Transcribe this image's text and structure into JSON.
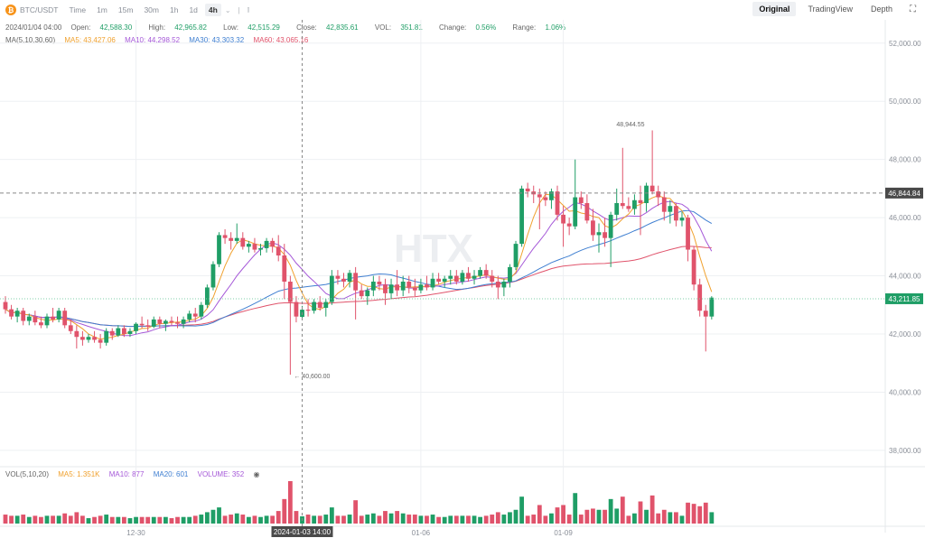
{
  "toolbar": {
    "symbol_icon": "bitcoin-icon",
    "symbol": "BTC/USDT",
    "timeframes": [
      "Time",
      "1m",
      "15m",
      "30m",
      "1h",
      "1d",
      "4h"
    ],
    "active_timeframe": "4h",
    "views": [
      "Original",
      "TradingView",
      "Depth"
    ],
    "active_view": "Original"
  },
  "ohlc": {
    "date": "2024/01/04 04:00",
    "open_label": "Open:",
    "open": "42,588.30",
    "high_label": "High:",
    "high": "42,965.82",
    "low_label": "Low:",
    "low": "42,515.29",
    "close_label": "Close:",
    "close": "42,835.61",
    "vol_label": "VOL:",
    "vol": "351.81",
    "change_label": "Change:",
    "change": "0.56%",
    "range_label": "Range:",
    "range": "1.06%"
  },
  "ma": {
    "label": "MA(5,10,30,60)",
    "ma5": "MA5: 43,427.06",
    "ma10": "MA10: 44,298.52",
    "ma30": "MA30: 43,303.32",
    "ma60": "MA60: 43,065.16"
  },
  "vol_info": {
    "label": "VOL(5,10,20)",
    "ma5": "MA5: 1.351K",
    "ma10": "MA10: 877",
    "ma20": "MA20: 601",
    "volume": "VOLUME: 352"
  },
  "colors": {
    "up": "#1f9e66",
    "down": "#e0536b",
    "ma5": "#f0a12e",
    "ma10": "#a558d8",
    "ma30": "#3f7fd1",
    "ma60": "#e0536b"
  },
  "chart_data": {
    "type": "candlestick",
    "ylim": [
      37500,
      52800
    ],
    "y_ticks": [
      38000,
      40000,
      42000,
      44000,
      46000,
      48000,
      50000,
      52000
    ],
    "y_tick_labels": [
      "38,000.00",
      "40,000.00",
      "42,000.00",
      "44,000.00",
      "46,000.00",
      "48,000.00",
      "50,000.00",
      "52,000.00"
    ],
    "x_tick_labels": [
      {
        "index": 22,
        "label": "12-30"
      },
      {
        "index": 70,
        "label": "01-06"
      },
      {
        "index": 94,
        "label": "01-09"
      }
    ],
    "crosshair": {
      "index": 50,
      "label": "2024-01-03 14:00"
    },
    "price_lines": [
      {
        "value": 46844.84,
        "label": "46,844.84",
        "style": "dashed-gray"
      },
      {
        "value": 43211.85,
        "label": "43,211.85",
        "style": "dotted-green"
      }
    ],
    "annotations": [
      {
        "index": 48,
        "value": 40600,
        "label": "40,600.00"
      },
      {
        "index": 108,
        "value": 48944.55,
        "label": "48,944.55"
      }
    ],
    "candles": [
      [
        43100,
        43300,
        42700,
        42850
      ],
      [
        42850,
        43000,
        42500,
        42600
      ],
      [
        42600,
        42900,
        42400,
        42800
      ],
      [
        42800,
        42900,
        42300,
        42450
      ],
      [
        42450,
        42700,
        42300,
        42600
      ],
      [
        42600,
        42800,
        42300,
        42400
      ],
      [
        42400,
        42600,
        42200,
        42300
      ],
      [
        42300,
        42700,
        42200,
        42600
      ],
      [
        42600,
        42900,
        42400,
        42500
      ],
      [
        42500,
        42900,
        42400,
        42800
      ],
      [
        42800,
        42900,
        42200,
        42300
      ],
      [
        42300,
        42500,
        42000,
        42100
      ],
      [
        42100,
        42300,
        41500,
        41900
      ],
      [
        41900,
        42100,
        41600,
        41800
      ],
      [
        41800,
        42000,
        41700,
        41900
      ],
      [
        41900,
        42100,
        41700,
        41800
      ],
      [
        41800,
        42000,
        41500,
        41700
      ],
      [
        41700,
        42200,
        41600,
        42100
      ],
      [
        42100,
        42200,
        41800,
        41950
      ],
      [
        41950,
        42300,
        41900,
        42200
      ],
      [
        42200,
        42300,
        41900,
        42000
      ],
      [
        42000,
        42200,
        41900,
        42100
      ],
      [
        42100,
        42400,
        42000,
        42350
      ],
      [
        42350,
        42600,
        42200,
        42300
      ],
      [
        42300,
        42500,
        42100,
        42250
      ],
      [
        42250,
        42600,
        42200,
        42500
      ],
      [
        42500,
        42600,
        42200,
        42350
      ],
      [
        42350,
        42500,
        42100,
        42450
      ],
      [
        42450,
        42600,
        42300,
        42400
      ],
      [
        42400,
        42600,
        42200,
        42350
      ],
      [
        42350,
        42600,
        42200,
        42500
      ],
      [
        42500,
        42800,
        42400,
        42700
      ],
      [
        42700,
        42900,
        42400,
        42600
      ],
      [
        42600,
        43100,
        42500,
        43000
      ],
      [
        43000,
        43700,
        42900,
        43600
      ],
      [
        43600,
        44500,
        43500,
        44400
      ],
      [
        44400,
        45500,
        44300,
        45400
      ],
      [
        45400,
        45600,
        45100,
        45300
      ],
      [
        45300,
        45500,
        44900,
        45200
      ],
      [
        45200,
        45800,
        45100,
        45300
      ],
      [
        45300,
        45500,
        44900,
        45000
      ],
      [
        45000,
        45200,
        44800,
        45100
      ],
      [
        45100,
        45300,
        44800,
        44900
      ],
      [
        44900,
        45100,
        44700,
        44950
      ],
      [
        44950,
        45300,
        44800,
        45200
      ],
      [
        45200,
        45300,
        44800,
        45000
      ],
      [
        45000,
        45400,
        44500,
        44700
      ],
      [
        44700,
        45100,
        43200,
        43800
      ],
      [
        43800,
        44000,
        40600,
        43100
      ],
      [
        43100,
        43300,
        42400,
        42600
      ],
      [
        42588,
        42966,
        42515,
        42836
      ],
      [
        42836,
        43200,
        42600,
        42800
      ],
      [
        42800,
        43200,
        42700,
        43100
      ],
      [
        43100,
        43300,
        42800,
        42900
      ],
      [
        42900,
        43200,
        42600,
        43100
      ],
      [
        43100,
        44200,
        43000,
        44000
      ],
      [
        44000,
        44200,
        43700,
        43900
      ],
      [
        43900,
        44100,
        43600,
        43800
      ],
      [
        43800,
        44200,
        43600,
        44100
      ],
      [
        44100,
        44300,
        42500,
        43500
      ],
      [
        43500,
        43700,
        43200,
        43300
      ],
      [
        43300,
        43600,
        43000,
        43500
      ],
      [
        43500,
        44000,
        43300,
        43800
      ],
      [
        43800,
        44000,
        43500,
        43700
      ],
      [
        43700,
        43900,
        43000,
        43400
      ],
      [
        43400,
        43900,
        43200,
        43700
      ],
      [
        43700,
        44200,
        43300,
        43500
      ],
      [
        43500,
        44000,
        43300,
        43800
      ],
      [
        43800,
        44000,
        43400,
        43600
      ],
      [
        43600,
        43900,
        43300,
        43500
      ],
      [
        43500,
        43900,
        43400,
        43700
      ],
      [
        43700,
        44000,
        43500,
        43600
      ],
      [
        43600,
        44100,
        43500,
        43900
      ],
      [
        43900,
        44100,
        43700,
        43800
      ],
      [
        43800,
        44000,
        43600,
        43900
      ],
      [
        43900,
        44200,
        43700,
        44000
      ],
      [
        44000,
        44200,
        43700,
        43800
      ],
      [
        43800,
        44200,
        43700,
        44100
      ],
      [
        44100,
        44300,
        43800,
        43900
      ],
      [
        43900,
        44200,
        43700,
        44000
      ],
      [
        44000,
        44300,
        43900,
        44200
      ],
      [
        44200,
        44400,
        43900,
        44000
      ],
      [
        44000,
        44200,
        43600,
        43800
      ],
      [
        43800,
        44000,
        43200,
        43600
      ],
      [
        43600,
        43900,
        43300,
        43800
      ],
      [
        43800,
        44400,
        43600,
        44300
      ],
      [
        44300,
        45200,
        44200,
        45100
      ],
      [
        45100,
        47100,
        45000,
        47000
      ],
      [
        47000,
        47200,
        46700,
        46900
      ],
      [
        46900,
        47100,
        46500,
        46800
      ],
      [
        46800,
        47000,
        45600,
        46700
      ],
      [
        46700,
        46900,
        46400,
        46600
      ],
      [
        46600,
        47000,
        46300,
        46900
      ],
      [
        46900,
        47100,
        45900,
        46100
      ],
      [
        46100,
        46400,
        45000,
        45800
      ],
      [
        45800,
        46000,
        45400,
        45700
      ],
      [
        45700,
        48000,
        45600,
        46700
      ],
      [
        46700,
        46900,
        46300,
        46500
      ],
      [
        46500,
        46800,
        45800,
        45900
      ],
      [
        45900,
        46300,
        45200,
        45400
      ],
      [
        45400,
        45800,
        44800,
        45500
      ],
      [
        45500,
        46000,
        45000,
        45300
      ],
      [
        45300,
        46200,
        44300,
        46100
      ],
      [
        46100,
        47000,
        45900,
        46500
      ],
      [
        46500,
        48400,
        46300,
        46400
      ],
      [
        46400,
        46700,
        46200,
        46300
      ],
      [
        46300,
        46800,
        46100,
        46600
      ],
      [
        46600,
        47100,
        45400,
        46500
      ],
      [
        46500,
        47200,
        46200,
        47100
      ],
      [
        47100,
        49000,
        46800,
        46900
      ],
      [
        46900,
        47100,
        46400,
        46700
      ],
      [
        46700,
        46900,
        45900,
        46200
      ],
      [
        46200,
        46600,
        45800,
        46400
      ],
      [
        46400,
        46500,
        45700,
        45900
      ],
      [
        45900,
        46200,
        45700,
        46000
      ],
      [
        46000,
        46100,
        44500,
        44900
      ],
      [
        44900,
        45000,
        43500,
        43700
      ],
      [
        43700,
        43900,
        42600,
        42800
      ],
      [
        42800,
        43000,
        41400,
        42600
      ],
      [
        42600,
        43300,
        42500,
        43250
      ]
    ],
    "volumes_note": "volume bars share candle indices"
  },
  "watermark": "HTX"
}
